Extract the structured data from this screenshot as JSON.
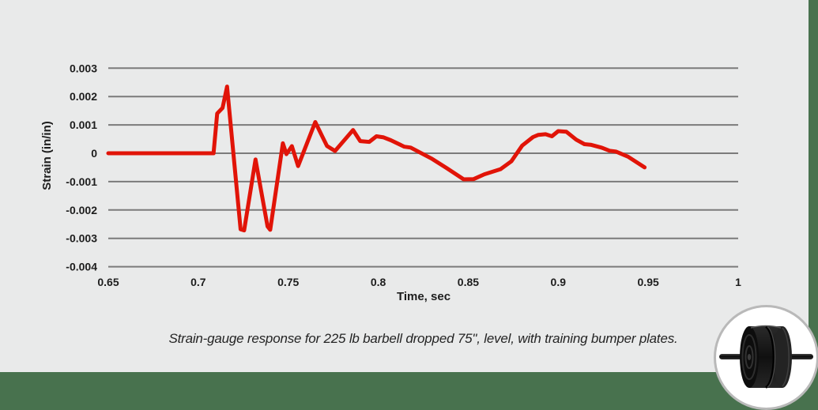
{
  "page": {
    "background_color": "#48724e",
    "panel_color": "#e9eaea"
  },
  "caption": "Strain-gauge response for 225 lb barbell dropped 75\", level, with training bumper plates.",
  "icons": {
    "badge": "barbell-with-training-bumper-plates-photo"
  },
  "chart_data": {
    "type": "line",
    "title": "",
    "xlabel": "Time, sec",
    "ylabel": "Strain (in/in)",
    "xlim": [
      0.65,
      1.0
    ],
    "ylim": [
      -0.004,
      0.003
    ],
    "grid": "horizontal-only",
    "grid_color": "#7b7b7b",
    "line_color": "#e11408",
    "line_width": 5,
    "x_ticks": [
      {
        "v": 0.65,
        "label": "0.65"
      },
      {
        "v": 0.7,
        "label": "0.7"
      },
      {
        "v": 0.75,
        "label": "0.75"
      },
      {
        "v": 0.8,
        "label": "0.8"
      },
      {
        "v": 0.85,
        "label": "0.85"
      },
      {
        "v": 0.9,
        "label": "0.9"
      },
      {
        "v": 0.95,
        "label": "0.95"
      },
      {
        "v": 1.0,
        "label": "1"
      }
    ],
    "y_ticks": [
      {
        "v": 0.003,
        "label": "0.003"
      },
      {
        "v": 0.002,
        "label": "0.002"
      },
      {
        "v": 0.001,
        "label": "0.001"
      },
      {
        "v": 0,
        "label": "0"
      },
      {
        "v": -0.001,
        "label": "-0.001"
      },
      {
        "v": -0.002,
        "label": "-0.002"
      },
      {
        "v": -0.003,
        "label": "-0.003"
      },
      {
        "v": -0.004,
        "label": "-0.004"
      }
    ],
    "series": [
      {
        "name": "strain-gauge-response",
        "points": [
          [
            0.65,
            0
          ],
          [
            0.7085,
            0
          ],
          [
            0.7105,
            0.0014
          ],
          [
            0.7135,
            0.0016
          ],
          [
            0.716,
            0.00235
          ],
          [
            0.7235,
            -0.00268
          ],
          [
            0.7255,
            -0.00272
          ],
          [
            0.7318,
            -0.00022
          ],
          [
            0.7385,
            -0.00258
          ],
          [
            0.74,
            -0.0027
          ],
          [
            0.747,
            0.00035
          ],
          [
            0.749,
            -3e-05
          ],
          [
            0.752,
            0.00025
          ],
          [
            0.7555,
            -0.00045
          ],
          [
            0.765,
            0.0011
          ],
          [
            0.769,
            0.00058
          ],
          [
            0.7715,
            0.00026
          ],
          [
            0.776,
            8e-05
          ],
          [
            0.786,
            0.00082
          ],
          [
            0.79,
            0.00043
          ],
          [
            0.795,
            0.0004
          ],
          [
            0.799,
            0.0006
          ],
          [
            0.803,
            0.00056
          ],
          [
            0.807,
            0.00046
          ],
          [
            0.8145,
            0.00023
          ],
          [
            0.818,
            0.0002
          ],
          [
            0.83,
            -0.0002
          ],
          [
            0.838,
            -0.00052
          ],
          [
            0.8475,
            -0.00092
          ],
          [
            0.853,
            -0.00091
          ],
          [
            0.859,
            -0.00074
          ],
          [
            0.868,
            -0.00056
          ],
          [
            0.874,
            -0.00028
          ],
          [
            0.88,
            0.00027
          ],
          [
            0.886,
            0.00057
          ],
          [
            0.889,
            0.00065
          ],
          [
            0.893,
            0.00067
          ],
          [
            0.8965,
            0.0006
          ],
          [
            0.9,
            0.00078
          ],
          [
            0.9045,
            0.00076
          ],
          [
            0.91,
            0.00048
          ],
          [
            0.9146,
            0.00032
          ],
          [
            0.918,
            0.0003
          ],
          [
            0.924,
            0.0002
          ],
          [
            0.9285,
            9e-05
          ],
          [
            0.932,
            6e-05
          ],
          [
            0.9388,
            -0.00012
          ],
          [
            0.948,
            -0.0005
          ]
        ]
      }
    ]
  }
}
